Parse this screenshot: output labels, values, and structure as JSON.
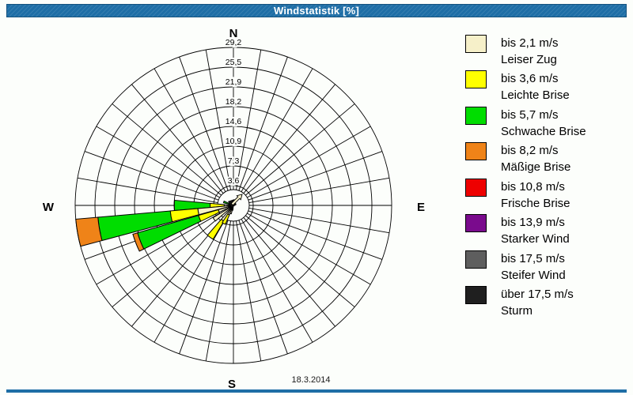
{
  "window": {
    "title": "Windstatistik [%]",
    "date": "18.3.2014"
  },
  "colors": {
    "titlebar": "#1e6ea6",
    "background": "#fcfefb",
    "grid": "#000000",
    "text": "#000000"
  },
  "compass": {
    "n": "N",
    "e": "E",
    "s": "S",
    "w": "W"
  },
  "chart_data": {
    "type": "windrose-polar-stacked-bar",
    "units": "%",
    "title": "Windstatistik [%]",
    "grid": "on",
    "legend_position": "right",
    "sector_width_deg": 10,
    "radial_axis": {
      "max": 29.2,
      "tick_step": 3.65,
      "ring_values_pct": [
        3.65,
        7.3,
        10.95,
        14.6,
        18.25,
        21.9,
        25.55,
        29.2
      ],
      "ring_labels": [
        "3,6",
        "7,3",
        "10,9",
        "14,6",
        "18,2",
        "21,9",
        "25,5",
        "29,2"
      ]
    },
    "speed_classes": [
      {
        "speed_label": "bis 2,1 m/s",
        "name": "Leiser Zug",
        "color": "#f6f0c9"
      },
      {
        "speed_label": "bis 3,6 m/s",
        "name": "Leichte Brise",
        "color": "#ffff00"
      },
      {
        "speed_label": "bis 5,7 m/s",
        "name": "Schwache Brise",
        "color": "#00dd00"
      },
      {
        "speed_label": "bis 8,2 m/s",
        "name": "Mäßige Brise",
        "color": "#ef8318"
      },
      {
        "speed_label": "bis 10,8 m/s",
        "name": "Frische Brise",
        "color": "#ee0000"
      },
      {
        "speed_label": "bis 13,9 m/s",
        "name": "Starker Wind",
        "color": "#7a0b8d"
      },
      {
        "speed_label": "bis 17,5 m/s",
        "name": "Steifer Wind",
        "color": "#5e5e5e"
      },
      {
        "speed_label": "über 17,5 m/s",
        "name": "Sturm",
        "color": "#1f1f1f"
      }
    ],
    "bars": [
      {
        "direction_deg": 290,
        "values_pct": [
          0.4,
          0.4,
          1.1
        ]
      },
      {
        "direction_deg": 270,
        "values_pct": [
          1.7,
          2.6,
          6.6
        ]
      },
      {
        "direction_deg": 260,
        "values_pct": [
          6.6,
          5.1,
          13.4,
          4.1
        ]
      },
      {
        "direction_deg": 249,
        "values_pct": [
          2.9,
          3.8,
          11.7,
          0.9
        ]
      },
      {
        "direction_deg": 234,
        "values_pct": [
          4.4
        ]
      },
      {
        "direction_deg": 216,
        "values_pct": [
          3.4,
          3.9
        ]
      },
      {
        "direction_deg": 208,
        "values_pct": [
          1.9,
          1.9
        ]
      },
      {
        "direction_deg": 199,
        "values_pct": [
          1.6
        ]
      },
      {
        "direction_deg": 191,
        "values_pct": [
          0.9
        ]
      }
    ],
    "center_arrow_deg": 48
  }
}
